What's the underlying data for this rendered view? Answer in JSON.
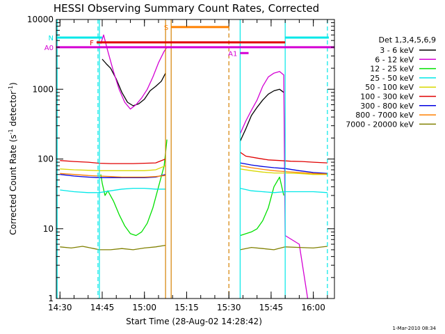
{
  "chart_data": {
    "type": "line",
    "title": "HESSI Observing Summary Count Rates, Corrected",
    "xlabel": "Start Time (28-Aug-02 14:28:42)",
    "ylabel_main": "Corrected Count Rate (s",
    "ylabel_sup1": "-1",
    "ylabel_mid": " detector",
    "ylabel_sup2": "-1",
    "ylabel_end": ")",
    "xlim": [
      "14:28:42",
      "16:07:30"
    ],
    "ylim": [
      1,
      10000
    ],
    "yscale": "log",
    "x_ticks": [
      "14:30",
      "14:45",
      "15:00",
      "15:15",
      "15:30",
      "15:45",
      "16:00"
    ],
    "y_ticks": [
      "1",
      "10",
      "100",
      "1000",
      "10000"
    ],
    "legend_title": "Det 1,3,4,5,6,9",
    "legend_position": "right",
    "timestamp": "1-Mar-2010 08:34",
    "series": [
      {
        "name": "3 - 6 keV",
        "color": "#000000",
        "points": [
          [
            "14:45:00",
            2700
          ],
          [
            "14:46:30",
            2300
          ],
          [
            "14:48:00",
            2000
          ],
          [
            "14:50:00",
            1400
          ],
          [
            "14:52:00",
            900
          ],
          [
            "14:54:00",
            650
          ],
          [
            "14:56:00",
            580
          ],
          [
            "14:58:00",
            620
          ],
          [
            "15:00:00",
            720
          ],
          [
            "15:02:00",
            950
          ],
          [
            "15:04:00",
            1100
          ],
          [
            "15:06:00",
            1300
          ],
          [
            "15:07:30",
            1700
          ],
          [
            "15:34:00",
            180
          ],
          [
            "15:36:00",
            270
          ],
          [
            "15:38:00",
            420
          ],
          [
            "15:40:00",
            550
          ],
          [
            "15:42:00",
            700
          ],
          [
            "15:44:00",
            850
          ],
          [
            "15:46:00",
            950
          ],
          [
            "15:48:00",
            1000
          ],
          [
            "15:49:30",
            900
          ]
        ]
      },
      {
        "name": "6 - 12 keV",
        "color": "#d400d4",
        "points": [
          [
            "14:44:30",
            4500
          ],
          [
            "14:45:30",
            6000
          ],
          [
            "14:47:00",
            3500
          ],
          [
            "14:49:00",
            1800
          ],
          [
            "14:51:00",
            1000
          ],
          [
            "14:53:00",
            650
          ],
          [
            "14:55:00",
            520
          ],
          [
            "14:57:00",
            600
          ],
          [
            "14:59:00",
            750
          ],
          [
            "15:01:00",
            1000
          ],
          [
            "15:03:00",
            1500
          ],
          [
            "15:05:00",
            2400
          ],
          [
            "15:07:00",
            3500
          ],
          [
            "15:08:00",
            4000
          ],
          [
            "15:34:00",
            230
          ],
          [
            "15:36:00",
            350
          ],
          [
            "15:38:00",
            500
          ],
          [
            "15:40:00",
            700
          ],
          [
            "15:42:00",
            1100
          ],
          [
            "15:44:00",
            1500
          ],
          [
            "15:46:00",
            1700
          ],
          [
            "15:48:00",
            1800
          ],
          [
            "15:49:30",
            1600
          ],
          [
            "15:50:00",
            8
          ],
          [
            "15:55:00",
            6
          ],
          [
            "15:58:00",
            1
          ]
        ]
      },
      {
        "name": "12 - 25 keV",
        "color": "#00e000",
        "points": [
          [
            "14:44:30",
            60
          ],
          [
            "14:45:00",
            45
          ],
          [
            "14:46:00",
            30
          ],
          [
            "14:47:00",
            35
          ],
          [
            "14:49:00",
            25
          ],
          [
            "14:51:00",
            16
          ],
          [
            "14:53:00",
            11
          ],
          [
            "14:55:00",
            8.5
          ],
          [
            "14:57:00",
            8
          ],
          [
            "14:59:00",
            9
          ],
          [
            "15:01:00",
            12
          ],
          [
            "15:03:00",
            20
          ],
          [
            "15:05:00",
            40
          ],
          [
            "15:07:00",
            80
          ],
          [
            "15:08:00",
            190
          ],
          [
            "15:34:00",
            8
          ],
          [
            "15:38:00",
            9
          ],
          [
            "15:40:00",
            10
          ],
          [
            "15:42:00",
            13
          ],
          [
            "15:44:00",
            20
          ],
          [
            "15:46:00",
            40
          ],
          [
            "15:48:00",
            55
          ],
          [
            "15:49:30",
            30
          ]
        ]
      },
      {
        "name": "25 - 50 keV",
        "color": "#00e8e8",
        "points": [
          [
            "14:30:00",
            36
          ],
          [
            "14:35:00",
            34
          ],
          [
            "14:40:00",
            33
          ],
          [
            "14:44:00",
            33
          ],
          [
            "14:48:00",
            35
          ],
          [
            "14:52:00",
            37
          ],
          [
            "14:56:00",
            38
          ],
          [
            "15:00:00",
            38
          ],
          [
            "15:04:00",
            37
          ],
          [
            "15:07:30",
            37
          ],
          [
            "15:34:00",
            38
          ],
          [
            "15:38:00",
            35
          ],
          [
            "15:42:00",
            34
          ],
          [
            "15:46:00",
            33
          ],
          [
            "15:50:00",
            34
          ],
          [
            "15:55:00",
            34
          ],
          [
            "16:00:00",
            34
          ],
          [
            "16:05:00",
            33
          ]
        ]
      },
      {
        "name": "50 - 100 keV",
        "color": "#d8d800",
        "points": [
          [
            "14:30:00",
            72
          ],
          [
            "14:35:00",
            70
          ],
          [
            "14:40:00",
            69
          ],
          [
            "14:44:00",
            68
          ],
          [
            "14:48:00",
            68
          ],
          [
            "14:52:00",
            68
          ],
          [
            "14:56:00",
            68
          ],
          [
            "15:00:00",
            68
          ],
          [
            "15:04:00",
            70
          ],
          [
            "15:07:30",
            80
          ],
          [
            "15:34:00",
            72
          ],
          [
            "15:38:00",
            68
          ],
          [
            "15:42:00",
            65
          ],
          [
            "15:46:00",
            63
          ],
          [
            "15:50:00",
            63
          ],
          [
            "15:55:00",
            62
          ],
          [
            "16:00:00",
            60
          ],
          [
            "16:05:00",
            60
          ]
        ]
      },
      {
        "name": "100 - 300 keV",
        "color": "#e00000",
        "points": [
          [
            "14:30:00",
            95
          ],
          [
            "14:35:00",
            92
          ],
          [
            "14:40:00",
            90
          ],
          [
            "14:44:00",
            87
          ],
          [
            "14:48:00",
            86
          ],
          [
            "14:52:00",
            86
          ],
          [
            "14:56:00",
            86
          ],
          [
            "15:00:00",
            87
          ],
          [
            "15:04:00",
            88
          ],
          [
            "15:07:30",
            100
          ],
          [
            "15:34:00",
            125
          ],
          [
            "15:36:00",
            110
          ],
          [
            "15:40:00",
            103
          ],
          [
            "15:44:00",
            97
          ],
          [
            "15:48:00",
            95
          ],
          [
            "15:52:00",
            93
          ],
          [
            "15:56:00",
            92
          ],
          [
            "16:00:00",
            90
          ],
          [
            "16:05:00",
            88
          ]
        ]
      },
      {
        "name": "300 - 800 keV",
        "color": "#0000e0",
        "points": [
          [
            "14:30:00",
            60
          ],
          [
            "14:35:00",
            57
          ],
          [
            "14:40:00",
            55
          ],
          [
            "14:44:00",
            54
          ],
          [
            "14:48:00",
            54
          ],
          [
            "14:52:00",
            54
          ],
          [
            "14:56:00",
            54
          ],
          [
            "15:00:00",
            54
          ],
          [
            "15:04:00",
            55
          ],
          [
            "15:07:30",
            60
          ],
          [
            "15:34:00",
            88
          ],
          [
            "15:38:00",
            82
          ],
          [
            "15:42:00",
            78
          ],
          [
            "15:46:00",
            75
          ],
          [
            "15:50:00",
            73
          ],
          [
            "15:55:00",
            68
          ],
          [
            "16:00:00",
            64
          ],
          [
            "16:05:00",
            62
          ]
        ]
      },
      {
        "name": "800 - 7000 keV",
        "color": "#ff8000",
        "points": [
          [
            "14:30:00",
            62
          ],
          [
            "14:35:00",
            60
          ],
          [
            "14:40:00",
            58
          ],
          [
            "14:44:00",
            57
          ],
          [
            "14:48:00",
            56
          ],
          [
            "14:52:00",
            55
          ],
          [
            "14:56:00",
            55
          ],
          [
            "15:00:00",
            55
          ],
          [
            "15:04:00",
            56
          ],
          [
            "15:07:30",
            58
          ],
          [
            "15:34:00",
            80
          ],
          [
            "15:38:00",
            75
          ],
          [
            "15:42:00",
            71
          ],
          [
            "15:46:00",
            68
          ],
          [
            "15:50:00",
            66
          ],
          [
            "15:55:00",
            64
          ],
          [
            "16:00:00",
            62
          ],
          [
            "16:05:00",
            61
          ]
        ]
      },
      {
        "name": "7000 - 20000 keV",
        "color": "#808000",
        "points": [
          [
            "14:30:00",
            5.5
          ],
          [
            "14:34:00",
            5.3
          ],
          [
            "14:38:00",
            5.6
          ],
          [
            "14:42:00",
            5.2
          ],
          [
            "14:44:00",
            5.0
          ],
          [
            "14:48:00",
            5.0
          ],
          [
            "14:52:00",
            5.2
          ],
          [
            "14:56:00",
            5.0
          ],
          [
            "15:00:00",
            5.3
          ],
          [
            "15:04:00",
            5.5
          ],
          [
            "15:07:30",
            5.8
          ],
          [
            "15:34:00",
            5.0
          ],
          [
            "15:38:00",
            5.4
          ],
          [
            "15:42:00",
            5.2
          ],
          [
            "15:46:00",
            5.0
          ],
          [
            "15:50:00",
            5.5
          ],
          [
            "15:55:00",
            5.4
          ],
          [
            "16:00:00",
            5.3
          ],
          [
            "16:05:00",
            5.6
          ]
        ]
      }
    ],
    "vertical_markers": [
      {
        "x": "14:29:00",
        "color": "#00e8e8",
        "style": "solid"
      },
      {
        "x": "14:43:30",
        "color": "#00e8e8",
        "style": "dashed"
      },
      {
        "x": "14:44:00",
        "color": "#00e8e8",
        "style": "solid"
      },
      {
        "x": "15:07:30",
        "color": "#d48000",
        "style": "solid"
      },
      {
        "x": "15:09:30",
        "color": "#d48000",
        "style": "solid"
      },
      {
        "x": "15:30:00",
        "color": "#d48000",
        "style": "dashed"
      },
      {
        "x": "15:34:00",
        "color": "#00e8e8",
        "style": "solid"
      },
      {
        "x": "15:50:00",
        "color": "#00e8e8",
        "style": "solid"
      },
      {
        "x": "16:05:00",
        "color": "#00e8e8",
        "style": "dashed"
      }
    ],
    "horizontal_markers": [
      {
        "label": "N",
        "y": 5500,
        "color": "#00e8e8",
        "segments": [
          [
            "14:28:42",
            "14:45:00"
          ],
          [
            "15:50:00",
            "16:05:30"
          ]
        ]
      },
      {
        "label": "F",
        "y": 4700,
        "color": "#e00000",
        "segments": [
          [
            "14:43:00",
            "15:50:00"
          ]
        ]
      },
      {
        "label": "S",
        "y": 7800,
        "color": "#ff8000",
        "segments": [
          [
            "15:09:30",
            "15:30:00"
          ]
        ]
      },
      {
        "label": "A0",
        "y": 4000,
        "color": "#d400d4",
        "segments": [
          [
            "14:28:42",
            "16:07:30"
          ]
        ]
      },
      {
        "label": "A1",
        "y": 3300,
        "color": "#d400d4",
        "segments": [
          [
            "15:34:00",
            "15:37:00"
          ]
        ]
      }
    ]
  }
}
